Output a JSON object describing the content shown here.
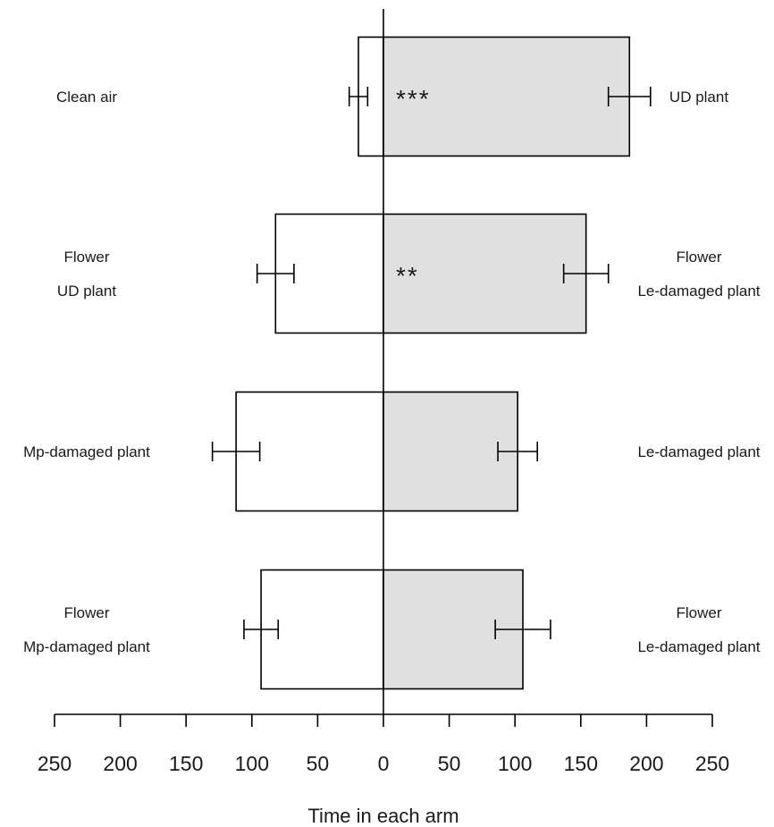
{
  "chart_data": {
    "type": "bar",
    "orientation": "horizontal-diverging",
    "xlabel": "Time in each arm",
    "xlim": [
      -250,
      250
    ],
    "x_ticks": [
      -250,
      -200,
      -150,
      -100,
      -50,
      0,
      50,
      100,
      150,
      200,
      250
    ],
    "x_tick_labels": [
      "250",
      "200",
      "150",
      "100",
      "50",
      "0",
      "50",
      "100",
      "150",
      "200",
      "250"
    ],
    "colors": {
      "left": "#ffffff",
      "right": "#e0e0e0",
      "stroke": "#000000"
    },
    "groups": [
      {
        "left_label": [
          "Clean air"
        ],
        "right_label": [
          "UD plant"
        ],
        "left_value": 19,
        "left_error": 7,
        "right_value": 187,
        "right_error": 16,
        "significance": "***"
      },
      {
        "left_label": [
          "Flower",
          "UD plant"
        ],
        "right_label": [
          "Flower",
          "Le-damaged plant"
        ],
        "left_value": 82,
        "left_error": 14,
        "right_value": 154,
        "right_error": 17,
        "significance": "**"
      },
      {
        "left_label": [
          "Mp-damaged plant"
        ],
        "right_label": [
          "Le-damaged plant"
        ],
        "left_value": 112,
        "left_error": 18,
        "right_value": 102,
        "right_error": 15,
        "significance": ""
      },
      {
        "left_label": [
          "Flower",
          "Mp-damaged plant"
        ],
        "right_label": [
          "Flower",
          "Le-damaged plant"
        ],
        "left_value": 93,
        "left_error": 13,
        "right_value": 106,
        "right_error": 21,
        "significance": ""
      }
    ]
  }
}
